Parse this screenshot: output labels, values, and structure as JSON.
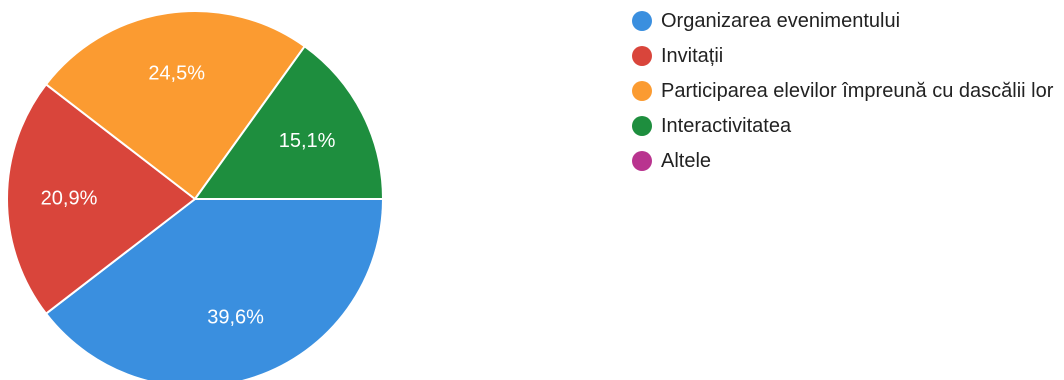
{
  "chart_data": {
    "type": "pie",
    "title": "",
    "slices": [
      {
        "label": "Organizarea evenimentului",
        "value": 39.6,
        "display": "39,6%",
        "color": "#3a8fdf"
      },
      {
        "label": "Invitații",
        "value": 20.9,
        "display": "20,9%",
        "color": "#d9453b"
      },
      {
        "label": "Participarea elevilor împreună cu dascălii lor",
        "value": 24.5,
        "display": "24,5%",
        "color": "#fb9b31"
      },
      {
        "label": "Interactivitatea",
        "value": 15.1,
        "display": "15,1%",
        "color": "#1e8e3e"
      },
      {
        "label": "Altele",
        "value": 0,
        "display": "",
        "color": "#b9348f"
      }
    ],
    "legend_position": "right"
  }
}
